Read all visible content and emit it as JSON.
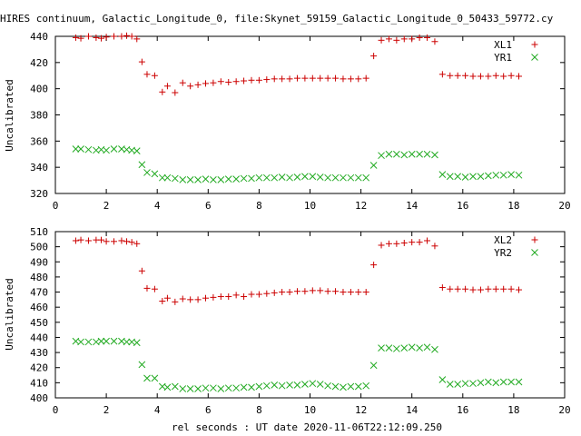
{
  "page": {
    "title": "HIRES continuum, Galactic_Longitude_0, file:Skynet_59159_Galactic_Longitude_0_50433_59772.cy",
    "xlabel": "rel seconds : UT date 2020-11-06T22:12:09.250"
  },
  "colors": {
    "XL": "#cc0000",
    "YR": "#22aa22",
    "axis": "#000000",
    "grid": "#000000"
  },
  "chart_data": [
    {
      "type": "scatter",
      "ylabel": "Uncalibrated",
      "xlim": [
        0,
        20
      ],
      "ylim": [
        320,
        440
      ],
      "xticks": [
        0,
        2,
        4,
        6,
        8,
        10,
        12,
        14,
        16,
        18,
        20
      ],
      "yticks": [
        320,
        340,
        360,
        380,
        400,
        420,
        440
      ],
      "grid": false,
      "legend_position": "top-right",
      "series": [
        {
          "name": "XL1",
          "marker": "plus",
          "color_key": "XL",
          "x": [
            0.8,
            1.0,
            1.3,
            1.6,
            1.8,
            2.0,
            2.3,
            2.6,
            2.8,
            3.0,
            3.2,
            3.4,
            3.6,
            3.9,
            4.2,
            4.4,
            4.7,
            5.0,
            5.3,
            5.6,
            5.9,
            6.2,
            6.5,
            6.8,
            7.1,
            7.4,
            7.7,
            8.0,
            8.3,
            8.6,
            8.9,
            9.2,
            9.5,
            9.8,
            10.1,
            10.4,
            10.7,
            11.0,
            11.3,
            11.6,
            11.9,
            12.2,
            12.5,
            12.8,
            13.1,
            13.4,
            13.7,
            14.0,
            14.3,
            14.6,
            14.9,
            15.2,
            15.5,
            15.8,
            16.1,
            16.4,
            16.7,
            17.0,
            17.3,
            17.6,
            17.9,
            18.2
          ],
          "y": [
            439,
            438.5,
            440,
            439,
            438.5,
            439.5,
            440,
            440,
            440.5,
            440,
            438,
            420.5,
            411,
            410,
            397.5,
            402,
            397,
            404.5,
            402,
            403,
            404,
            404.5,
            405.5,
            405,
            405.5,
            406,
            406.5,
            406.5,
            407,
            407.5,
            407.5,
            407.5,
            408,
            408,
            408,
            408,
            408,
            408,
            407.5,
            407.5,
            407.5,
            408,
            425,
            437,
            438,
            437,
            438,
            438,
            439,
            439,
            436,
            411,
            410,
            410,
            410,
            409.5,
            409.5,
            409.5,
            410,
            409.5,
            410,
            409.5
          ]
        },
        {
          "name": "YR1",
          "marker": "cross",
          "color_key": "YR",
          "x": [
            0.8,
            1.0,
            1.3,
            1.6,
            1.8,
            2.0,
            2.3,
            2.6,
            2.8,
            3.0,
            3.2,
            3.4,
            3.6,
            3.9,
            4.2,
            4.4,
            4.7,
            5.0,
            5.3,
            5.6,
            5.9,
            6.2,
            6.5,
            6.8,
            7.1,
            7.4,
            7.7,
            8.0,
            8.3,
            8.6,
            8.9,
            9.2,
            9.5,
            9.8,
            10.1,
            10.4,
            10.7,
            11.0,
            11.3,
            11.6,
            11.9,
            12.2,
            12.5,
            12.8,
            13.1,
            13.4,
            13.7,
            14.0,
            14.3,
            14.6,
            14.9,
            15.2,
            15.5,
            15.8,
            16.1,
            16.4,
            16.7,
            17.0,
            17.3,
            17.6,
            17.9,
            18.2
          ],
          "y": [
            354,
            354,
            353.5,
            353,
            353.5,
            353,
            354,
            354,
            353.5,
            353,
            352.5,
            342,
            336,
            335,
            332,
            332,
            331.5,
            330.5,
            330.5,
            330.5,
            331,
            330.5,
            330.5,
            331,
            331,
            331.5,
            331.5,
            332,
            332,
            332,
            332.5,
            332,
            332.5,
            333,
            333,
            332.5,
            332,
            332,
            332,
            332,
            332,
            332,
            341.5,
            349,
            350,
            350,
            349.5,
            350,
            350,
            350,
            349.5,
            334.5,
            333,
            333,
            332.5,
            333,
            333,
            333.5,
            334,
            334,
            334.5,
            334
          ]
        }
      ]
    },
    {
      "type": "scatter",
      "ylabel": "Uncalibrated",
      "xlim": [
        0,
        20
      ],
      "ylim": [
        400,
        510
      ],
      "xticks": [
        0,
        2,
        4,
        6,
        8,
        10,
        12,
        14,
        16,
        18,
        20
      ],
      "yticks": [
        400,
        410,
        420,
        430,
        440,
        450,
        460,
        470,
        480,
        490,
        500,
        510
      ],
      "grid": false,
      "legend_position": "top-right",
      "series": [
        {
          "name": "XL2",
          "marker": "plus",
          "color_key": "XL",
          "x": [
            0.8,
            1.0,
            1.3,
            1.6,
            1.8,
            2.0,
            2.3,
            2.6,
            2.8,
            3.0,
            3.2,
            3.4,
            3.6,
            3.9,
            4.2,
            4.4,
            4.7,
            5.0,
            5.3,
            5.6,
            5.9,
            6.2,
            6.5,
            6.8,
            7.1,
            7.4,
            7.7,
            8.0,
            8.3,
            8.6,
            8.9,
            9.2,
            9.5,
            9.8,
            10.1,
            10.4,
            10.7,
            11.0,
            11.3,
            11.6,
            11.9,
            12.2,
            12.5,
            12.8,
            13.1,
            13.4,
            13.7,
            14.0,
            14.3,
            14.6,
            14.9,
            15.2,
            15.5,
            15.8,
            16.1,
            16.4,
            16.7,
            17.0,
            17.3,
            17.6,
            17.9,
            18.2
          ],
          "y": [
            504,
            504.5,
            504,
            504.5,
            504.5,
            503.5,
            503.5,
            504,
            503.5,
            503,
            502,
            484,
            472.5,
            472,
            464,
            466,
            463.5,
            465.5,
            465,
            465,
            466,
            466.5,
            467,
            467,
            468,
            467,
            468.5,
            468.5,
            469,
            469.5,
            470,
            470,
            470.5,
            470.5,
            471,
            471,
            470.5,
            470.5,
            470,
            470,
            470,
            470,
            488,
            501,
            502,
            502,
            502.5,
            503,
            503,
            504,
            500.5,
            473,
            472,
            472,
            472,
            471.5,
            471.5,
            472,
            472,
            472,
            472,
            471.5
          ]
        },
        {
          "name": "YR2",
          "marker": "cross",
          "color_key": "YR",
          "x": [
            0.8,
            1.0,
            1.3,
            1.6,
            1.8,
            2.0,
            2.3,
            2.6,
            2.8,
            3.0,
            3.2,
            3.4,
            3.6,
            3.9,
            4.2,
            4.4,
            4.7,
            5.0,
            5.3,
            5.6,
            5.9,
            6.2,
            6.5,
            6.8,
            7.1,
            7.4,
            7.7,
            8.0,
            8.3,
            8.6,
            8.9,
            9.2,
            9.5,
            9.8,
            10.1,
            10.4,
            10.7,
            11.0,
            11.3,
            11.6,
            11.9,
            12.2,
            12.5,
            12.8,
            13.1,
            13.4,
            13.7,
            14.0,
            14.3,
            14.6,
            14.9,
            15.2,
            15.5,
            15.8,
            16.1,
            16.4,
            16.7,
            17.0,
            17.3,
            17.6,
            17.9,
            18.2
          ],
          "y": [
            437.5,
            437,
            437,
            437,
            437.5,
            437.5,
            437.5,
            437.5,
            437,
            437,
            436.5,
            422,
            413,
            413,
            407.5,
            407,
            407.5,
            406,
            406,
            406,
            406.5,
            406.5,
            406,
            406.5,
            406.5,
            407,
            407,
            407.5,
            408,
            408.5,
            408,
            408.5,
            408.5,
            409,
            409.5,
            409,
            408,
            407.5,
            407,
            407.5,
            407.5,
            408,
            421.5,
            433,
            433,
            432.5,
            433,
            433.5,
            433,
            433.5,
            432,
            412,
            409,
            409,
            409.5,
            409.5,
            410,
            410.5,
            410,
            410.5,
            410.5,
            410.5
          ]
        }
      ]
    }
  ]
}
